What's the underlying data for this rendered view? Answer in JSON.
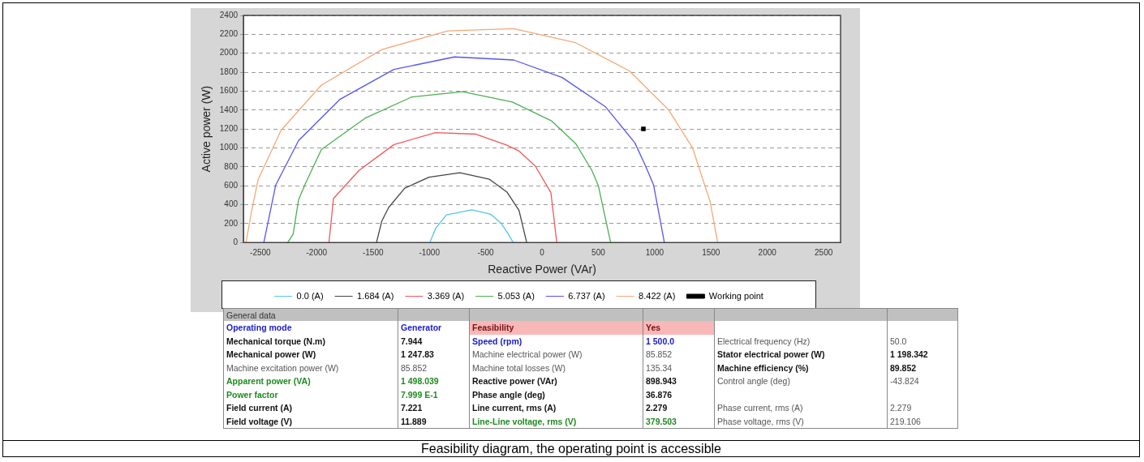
{
  "chart_data": [
    {
      "type": "line",
      "xlabel": "Reactive Power (VAr)",
      "ylabel": "Active power (W)",
      "xlim": [
        -2650,
        2650
      ],
      "xticks": [
        -2500,
        -2000,
        -1500,
        -1000,
        -500,
        0,
        500,
        1000,
        1500,
        2000,
        2500
      ],
      "ylim": [
        0,
        2400
      ],
      "yticks": [
        0,
        200,
        400,
        600,
        800,
        1000,
        1200,
        1400,
        1600,
        1800,
        2000,
        2200,
        2400
      ],
      "grid": "y",
      "legend": "bottom",
      "marker": "none",
      "series": [
        {
          "name": "0.0 (A)",
          "color": "#4ec9e0",
          "x": [
            -996,
            -944,
            -848,
            -621,
            -454,
            -359,
            -299,
            -256
          ],
          "values": [
            0,
            150,
            292,
            345,
            298,
            198,
            88,
            0
          ]
        },
        {
          "name": "1.684 (A)",
          "color": "#444444",
          "x": [
            -1469,
            -1421,
            -1361,
            -1218,
            -1003,
            -729,
            -466,
            -311,
            -204,
            -136
          ],
          "values": [
            0,
            229,
            370,
            574,
            690,
            737,
            668,
            533,
            339,
            0
          ]
        },
        {
          "name": "3.369 (A)",
          "color": "#f0585a",
          "x": [
            -1891,
            -1851,
            -1624,
            -1314,
            -944,
            -586,
            -311,
            -203,
            -60,
            79,
            131
          ],
          "values": [
            0,
            464,
            762,
            1035,
            1161,
            1145,
            1029,
            966,
            809,
            527,
            0
          ]
        },
        {
          "name": "5.053 (A)",
          "color": "#4caf50",
          "x": [
            -2257,
            -2209,
            -2161,
            -2101,
            -1958,
            -1564,
            -1158,
            -705,
            -263,
            84,
            299,
            443,
            501,
            609
          ],
          "values": [
            0,
            88,
            449,
            621,
            982,
            1318,
            1537,
            1594,
            1484,
            1286,
            1045,
            762,
            596,
            0
          ]
        },
        {
          "name": "6.737 (A)",
          "color": "#5555ee",
          "x": [
            -2469,
            -2364,
            -2161,
            -1791,
            -1314,
            -777,
            -251,
            179,
            561,
            824,
            919,
            991,
            1086
          ],
          "values": [
            0,
            605,
            1076,
            1515,
            1829,
            1961,
            1929,
            1744,
            1437,
            1054,
            809,
            605,
            0
          ]
        },
        {
          "name": "8.422 (A)",
          "color": "#f5a878",
          "x": [
            -2627,
            -2579,
            -2519,
            -2316,
            -1958,
            -1421,
            -836,
            -251,
            298,
            776,
            1122,
            1337,
            1492,
            1559
          ],
          "values": [
            0,
            323,
            668,
            1186,
            1663,
            2039,
            2237,
            2259,
            2111,
            1813,
            1405,
            998,
            433,
            0
          ]
        },
        {
          "name": "Working point",
          "type": "scatter",
          "marker": "square",
          "color": "#000000",
          "x": [
            900
          ],
          "values": [
            1200
          ]
        }
      ],
      "annotations": [
        "Feasibility diagram, the operating point is accessible"
      ]
    },
    {
      "type": "other",
      "title": "General data",
      "annotations": [
        "Operating mode",
        "Generator",
        "Feasibility",
        "Yes",
        "Mechanical torque (N.m)",
        "7.944",
        "Speed (rpm)",
        "1 500.0",
        "Electrical frequency (Hz)",
        "50.0",
        "Mechanical power (W)",
        "1 247.83",
        "Machine electrical power (W)",
        "85.852",
        "Stator electrical power (W)",
        "1 198.342",
        "Machine excitation power (W)",
        "85.852",
        "Machine total losses (W)",
        "135.34",
        "Machine efficiency (%)",
        "89.852",
        "Apparent power (VA)",
        "1 498.039",
        "Reactive power (VAr)",
        "898.943",
        "Control angle (deg)",
        "-43.824",
        "Power factor",
        "7.999 E-1",
        "Phase angle (deg)",
        "36.876",
        "Field current (A)",
        "7.221",
        "Line current, rms (A)",
        "2.279",
        "Phase current, rms (A)",
        "2.279",
        "Field voltage (V)",
        "11.889",
        "Line-Line voltage, rms (V)",
        "379.503",
        "Phase voltage, rms (V)",
        "219.106"
      ]
    }
  ]
}
